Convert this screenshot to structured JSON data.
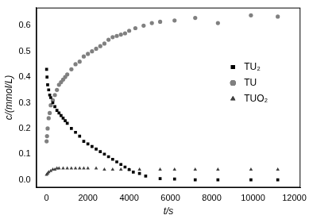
{
  "chart_data": {
    "type": "scatter",
    "x_label": "t/s",
    "y_label": "c/(mmol/L)",
    "xlim": [
      -500,
      12300
    ],
    "xticks": [
      0,
      2000,
      4000,
      6000,
      8000,
      10000,
      12000
    ],
    "ylim": [
      -0.03,
      0.67
    ],
    "yticks": [
      {
        "value": 0,
        "label": "0.0"
      },
      {
        "value": 0.1,
        "label": "0.1"
      },
      {
        "value": 0.2,
        "label": "0.2"
      },
      {
        "value": 0.3,
        "label": "0.3"
      },
      {
        "value": 0.4,
        "label": "0.4"
      },
      {
        "value": 0.5,
        "label": "0.5"
      },
      {
        "value": 0.6,
        "label": "0.6"
      }
    ],
    "grid": false,
    "legend": "upper right",
    "series": [
      {
        "name": "TU₂",
        "color": "#000000",
        "marker": "square",
        "x": [
          0,
          20,
          50,
          100,
          150,
          200,
          300,
          400,
          500,
          600,
          700,
          800,
          900,
          1000,
          1200,
          1400,
          1600,
          1800,
          2000,
          2200,
          2400,
          2600,
          2800,
          3000,
          3200,
          3400,
          3600,
          3800,
          4000,
          4200,
          4500,
          4800,
          5500,
          6200,
          7200,
          8300,
          9900,
          11200
        ],
        "values": [
          0.43,
          0.4,
          0.37,
          0.35,
          0.33,
          0.32,
          0.3,
          0.285,
          0.27,
          0.26,
          0.25,
          0.24,
          0.23,
          0.22,
          0.2,
          0.185,
          0.17,
          0.15,
          0.14,
          0.13,
          0.12,
          0.11,
          0.1,
          0.09,
          0.08,
          0.07,
          0.06,
          0.05,
          0.04,
          0.03,
          0.025,
          0.015,
          0.005,
          0.003,
          0,
          0,
          0,
          0
        ]
      },
      {
        "name": "TU",
        "color": "#808080",
        "marker": "circle",
        "x": [
          0,
          20,
          50,
          100,
          150,
          200,
          300,
          400,
          500,
          600,
          700,
          800,
          900,
          1000,
          1200,
          1400,
          1600,
          1800,
          2000,
          2200,
          2400,
          2600,
          2800,
          3000,
          3200,
          3400,
          3600,
          3800,
          4000,
          4300,
          4700,
          5100,
          5500,
          6200,
          7200,
          8300,
          9900,
          11200
        ],
        "values": [
          0.15,
          0.17,
          0.2,
          0.24,
          0.26,
          0.29,
          0.31,
          0.33,
          0.35,
          0.37,
          0.38,
          0.39,
          0.4,
          0.41,
          0.43,
          0.45,
          0.46,
          0.48,
          0.49,
          0.5,
          0.51,
          0.52,
          0.53,
          0.545,
          0.555,
          0.56,
          0.565,
          0.57,
          0.58,
          0.59,
          0.6,
          0.61,
          0.615,
          0.62,
          0.63,
          0.61,
          0.64,
          0.635
        ]
      },
      {
        "name": "TUO₂",
        "color": "#404040",
        "marker": "triangle",
        "x": [
          0,
          50,
          100,
          200,
          300,
          400,
          500,
          600,
          800,
          1000,
          1200,
          1400,
          1600,
          1800,
          2000,
          2400,
          2800,
          3200,
          3600,
          4000,
          4500,
          5500,
          6200,
          7200,
          8300,
          9900,
          11200
        ],
        "values": [
          0.02,
          0.025,
          0.03,
          0.035,
          0.04,
          0.04,
          0.045,
          0.045,
          0.045,
          0.045,
          0.045,
          0.045,
          0.045,
          0.045,
          0.045,
          0.045,
          0.04,
          0.04,
          0.04,
          0.04,
          0.04,
          0.04,
          0.04,
          0.04,
          0.04,
          0.04,
          0.04
        ]
      }
    ]
  }
}
